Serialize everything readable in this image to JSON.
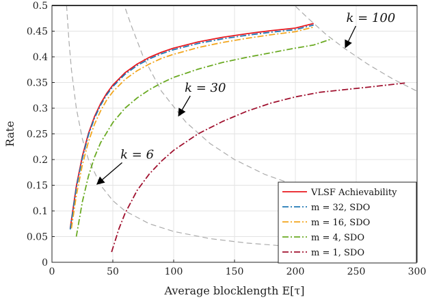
{
  "chart_data": {
    "type": "line",
    "title": "",
    "xlabel": "Average blocklength E[τ]",
    "ylabel": "Rate",
    "xlim": [
      0,
      300
    ],
    "ylim": [
      0,
      0.5
    ],
    "xticks": [
      0,
      50,
      100,
      150,
      200,
      250,
      300
    ],
    "yticks": [
      0,
      0.05,
      0.1,
      0.15,
      0.2,
      0.25,
      0.3,
      0.35,
      0.4,
      0.45,
      0.5
    ],
    "grid": true,
    "legend_position": "bottom-right",
    "series": [
      {
        "name": "VLSF Achievability",
        "color": "#e8171d",
        "dash": "solid",
        "x": [
          15,
          20,
          25,
          30,
          35,
          40,
          45,
          50,
          60,
          70,
          80,
          90,
          100,
          120,
          140,
          160,
          180,
          200,
          215
        ],
        "y": [
          0.066,
          0.148,
          0.207,
          0.251,
          0.284,
          0.309,
          0.329,
          0.345,
          0.369,
          0.386,
          0.399,
          0.409,
          0.417,
          0.429,
          0.438,
          0.445,
          0.451,
          0.456,
          0.465
        ]
      },
      {
        "name": "m = 32, SDO",
        "color": "#1f77b4",
        "dash": "dashdot",
        "x": [
          15,
          20,
          25,
          30,
          35,
          40,
          45,
          50,
          60,
          70,
          80,
          90,
          100,
          120,
          140,
          160,
          180,
          200,
          215
        ],
        "y": [
          0.064,
          0.145,
          0.203,
          0.248,
          0.281,
          0.306,
          0.326,
          0.342,
          0.366,
          0.383,
          0.396,
          0.406,
          0.414,
          0.426,
          0.435,
          0.442,
          0.448,
          0.453,
          0.462
        ]
      },
      {
        "name": "m = 16, SDO",
        "color": "#f2a51c",
        "dash": "dashdot",
        "x": [
          16,
          20,
          25,
          30,
          35,
          40,
          45,
          50,
          60,
          70,
          80,
          90,
          100,
          120,
          140,
          160,
          180,
          200,
          215
        ],
        "y": [
          0.066,
          0.13,
          0.19,
          0.235,
          0.269,
          0.295,
          0.316,
          0.332,
          0.356,
          0.373,
          0.386,
          0.397,
          0.405,
          0.418,
          0.428,
          0.436,
          0.443,
          0.449,
          0.458
        ]
      },
      {
        "name": "m = 4, SDO",
        "color": "#6aaa22",
        "dash": "dashdot",
        "x": [
          20,
          25,
          30,
          35,
          40,
          50,
          60,
          70,
          80,
          90,
          100,
          120,
          140,
          160,
          180,
          200,
          215,
          230
        ],
        "y": [
          0.05,
          0.118,
          0.168,
          0.205,
          0.233,
          0.272,
          0.3,
          0.32,
          0.336,
          0.349,
          0.36,
          0.376,
          0.389,
          0.399,
          0.408,
          0.417,
          0.423,
          0.435
        ]
      },
      {
        "name": "m = 1, SDO",
        "color": "#a0102e",
        "dash": "dashdot",
        "x": [
          49,
          55,
          60,
          70,
          80,
          90,
          100,
          120,
          140,
          160,
          180,
          200,
          220,
          240,
          260,
          290
        ],
        "y": [
          0.02,
          0.065,
          0.095,
          0.14,
          0.172,
          0.197,
          0.218,
          0.25,
          0.274,
          0.294,
          0.31,
          0.322,
          0.331,
          0.336,
          0.341,
          0.349
        ]
      }
    ],
    "reference_curves": [
      {
        "label": "k = 100",
        "color": "#aaaaaa",
        "x": [
          195,
          210,
          225,
          240,
          260,
          280,
          300
        ],
        "y": [
          0.51,
          0.476,
          0.444,
          0.417,
          0.385,
          0.357,
          0.333
        ]
      },
      {
        "label": "k = 30",
        "color": "#aaaaaa",
        "x": [
          58,
          65,
          75,
          90,
          110,
          130,
          150,
          175,
          200,
          225,
          250,
          275,
          300
        ],
        "y": [
          0.51,
          0.462,
          0.4,
          0.333,
          0.273,
          0.231,
          0.2,
          0.171,
          0.15,
          0.133,
          0.12,
          0.109,
          0.1
        ]
      },
      {
        "label": "k = 6",
        "color": "#aaaaaa",
        "x": [
          12,
          14,
          16,
          20,
          25,
          30,
          40,
          50,
          60,
          80,
          100,
          130,
          160,
          200,
          250,
          300
        ],
        "y": [
          0.5,
          0.43,
          0.375,
          0.3,
          0.24,
          0.2,
          0.15,
          0.12,
          0.1,
          0.075,
          0.06,
          0.046,
          0.0375,
          0.03,
          0.024,
          0.02
        ]
      }
    ],
    "annotations": [
      {
        "text": "k = 100",
        "text_at": [
          262,
          0.468
        ],
        "arrow_to": [
          241,
          0.418
        ]
      },
      {
        "text": "k = 30",
        "text_at": [
          126,
          0.332
        ],
        "arrow_to": [
          104,
          0.285
        ]
      },
      {
        "text": "k = 6",
        "text_at": [
          70,
          0.202
        ],
        "arrow_to": [
          37,
          0.152
        ]
      }
    ],
    "reference_line": {
      "y": 0.5,
      "color": "#444444"
    }
  }
}
